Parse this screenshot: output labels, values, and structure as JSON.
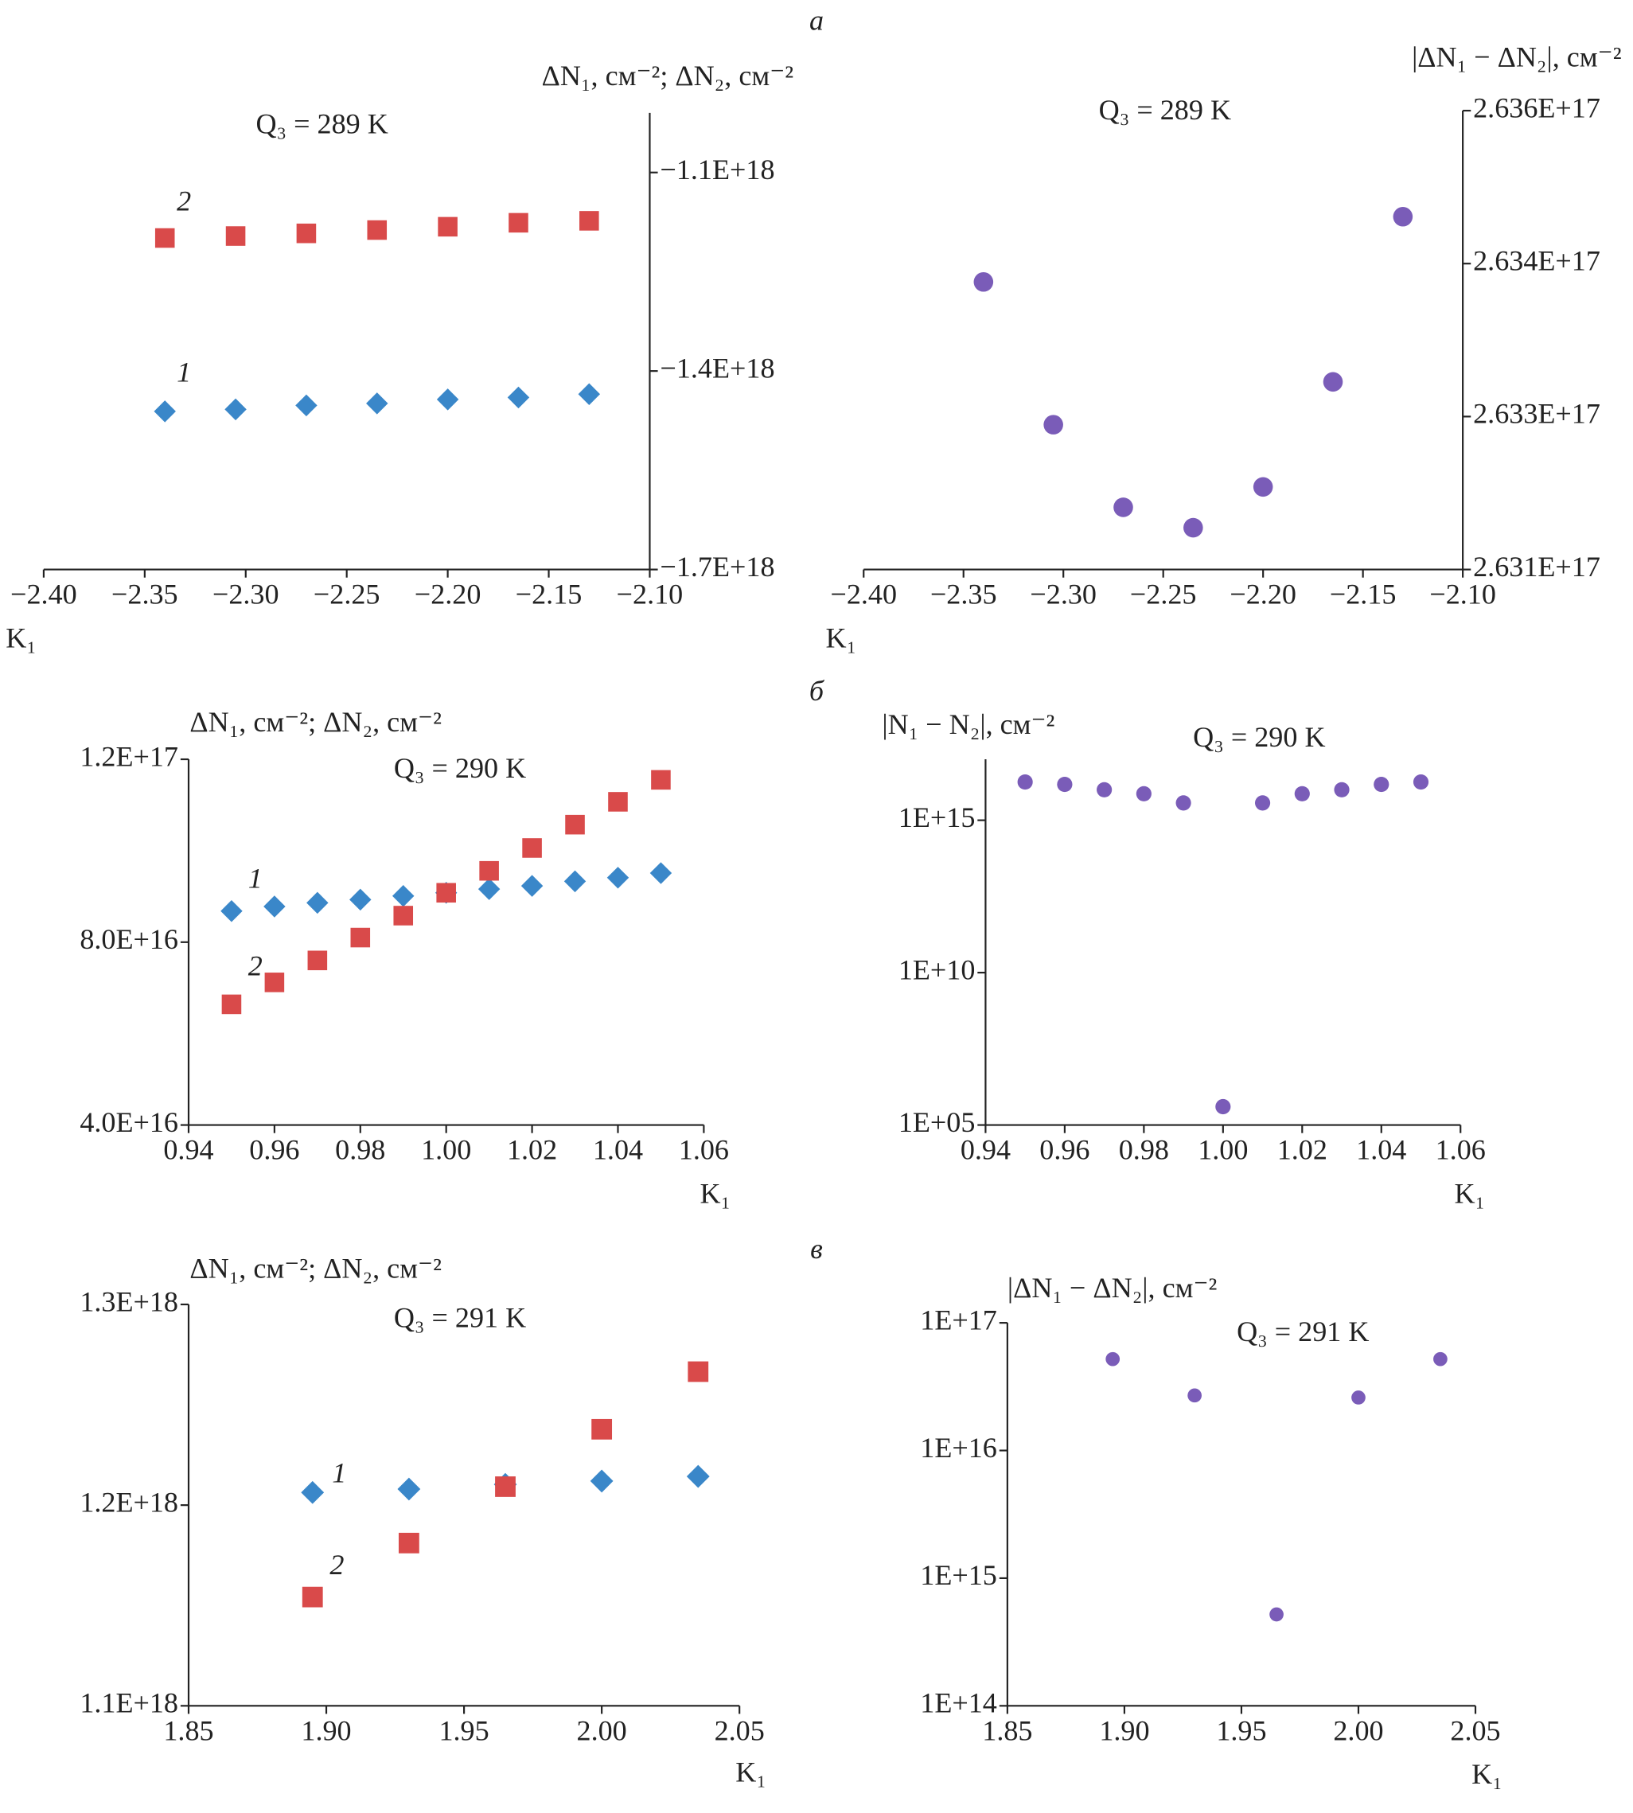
{
  "panel_labels": [
    "а",
    "б",
    "в"
  ],
  "chart_data": [
    {
      "type": "scatter",
      "title": "Q₃ = 289 K",
      "x_label": "K₁",
      "y_label": "ΔN₁, см⁻²; ΔN₂, см⁻²",
      "x": [
        -2.34,
        -2.305,
        -2.27,
        -2.235,
        -2.2,
        -2.165,
        -2.13
      ],
      "series": [
        {
          "name": "1",
          "color": "#3a87c9",
          "marker": "diamond",
          "values": [
            -1.461e+18,
            -1.458e+18,
            -1.452e+18,
            -1.449e+18,
            -1.443e+18,
            -1.44e+18,
            -1.435e+18
          ]
        },
        {
          "name": "2",
          "color": "#d94a4a",
          "marker": "square",
          "values": [
            -1.199e+18,
            -1.196e+18,
            -1.192e+18,
            -1.187e+18,
            -1.182e+18,
            -1.176e+18,
            -1.173e+18
          ]
        }
      ],
      "xlim": [
        -2.4,
        -2.1
      ],
      "xticks": [
        {
          "value": -2.4,
          "label": "−2.40"
        },
        {
          "value": -2.35,
          "label": "−2.35"
        },
        {
          "value": -2.3,
          "label": "−2.30"
        },
        {
          "value": -2.25,
          "label": "−2.25"
        },
        {
          "value": -2.2,
          "label": "−2.20"
        },
        {
          "value": -2.15,
          "label": "−2.15"
        },
        {
          "value": -2.1,
          "label": "−2.10"
        }
      ],
      "ylim": [
        -1.7e+18,
        -1.01e+18
      ],
      "yticks": [
        {
          "value": -1.7e+18,
          "label": "−1.7E+18"
        },
        {
          "value": -1.4e+18,
          "label": "−1.4E+18"
        },
        {
          "value": -1.1e+18,
          "label": "−1.1E+18"
        }
      ],
      "log_y": false
    },
    {
      "type": "scatter",
      "title": "Q₃ = 289 K",
      "x_label": "K₁",
      "y_label": "|ΔN₁ − ΔN₂|, см⁻²",
      "x": [
        -2.34,
        -2.305,
        -2.27,
        -2.235,
        -2.2,
        -2.165,
        -2.13
      ],
      "values": [
        2.63382e+17,
        2.63242e+17,
        2.63161e+17,
        2.63141e+17,
        2.63181e+17,
        2.63284e+17,
        2.63446e+17
      ],
      "color": "#7a5cb8",
      "marker": "circle",
      "xlim": [
        -2.4,
        -2.1
      ],
      "xticks": [
        {
          "value": -2.4,
          "label": "−2.40"
        },
        {
          "value": -2.35,
          "label": "−2.35"
        },
        {
          "value": -2.3,
          "label": "−2.30"
        },
        {
          "value": -2.25,
          "label": "−2.25"
        },
        {
          "value": -2.2,
          "label": "−2.20"
        },
        {
          "value": -2.15,
          "label": "−2.15"
        },
        {
          "value": -2.1,
          "label": "−2.10"
        }
      ],
      "ylim": [
        2.631e+17,
        2.6355e+17
      ],
      "yticks": [
        {
          "value": 2.631e+17,
          "label": "2.631E+17"
        },
        {
          "value": 2.6325e+17,
          "label": "2.633E+17"
        },
        {
          "value": 2.634e+17,
          "label": "2.634E+17"
        },
        {
          "value": 2.6355e+17,
          "label": "2.636E+17"
        }
      ],
      "log_y": false
    },
    {
      "type": "scatter",
      "title": "Q₃ = 290 K",
      "x_label": "K₁",
      "y_label": "ΔN₁, см⁻²; ΔN₂, см⁻²",
      "x": [
        0.95,
        0.96,
        0.97,
        0.98,
        0.99,
        1.0,
        1.01,
        1.02,
        1.03,
        1.04,
        1.05
      ],
      "series": [
        {
          "name": "1",
          "color": "#3a87c9",
          "marker": "diamond",
          "values": [
            8.68e+16,
            8.78e+16,
            8.86e+16,
            8.93e+16,
            9.01e+16,
            9.08e+16,
            9.16e+16,
            9.23e+16,
            9.33e+16,
            9.41e+16,
            9.51e+16
          ]
        },
        {
          "name": "2",
          "color": "#d94a4a",
          "marker": "square",
          "values": [
            6.64e+16,
            7.12e+16,
            7.6e+16,
            8.1e+16,
            8.58e+16,
            9.08e+16,
            9.56e+16,
            1.006e+17,
            1.057e+17,
            1.107e+17,
            1.155e+17
          ]
        }
      ],
      "xlim": [
        0.94,
        1.06
      ],
      "xticks": [
        0.94,
        0.96,
        0.98,
        {
          "value": 1.0,
          "label": "1.00"
        },
        1.02,
        1.04,
        1.06
      ],
      "ylim": [
        4e+16,
        1.2e+17
      ],
      "yticks": [
        {
          "value": 4e+16,
          "label": "4.0E+16"
        },
        {
          "value": 8e+16,
          "label": "8.0E+16"
        },
        {
          "value": 1.2e+17,
          "label": "1.2E+17"
        }
      ],
      "log_y": false
    },
    {
      "type": "scatter",
      "title": "Q₃ = 290 K",
      "x_label": "K₁",
      "y_label": "|N₁ − N₂|, см⁻²",
      "x": [
        0.95,
        0.96,
        0.97,
        0.98,
        0.99,
        1.0,
        1.01,
        1.02,
        1.03,
        1.04,
        1.05
      ],
      "values": [
        1.8e+16,
        1.5e+16,
        1e+16,
        7400000000000000.0,
        3700000000000000.0,
        400000.0,
        3700000000000000.0,
        7400000000000000.0,
        1e+16,
        1.5e+16,
        1.8e+16
      ],
      "color": "#7a5cb8",
      "marker": "circle",
      "xlim": [
        0.94,
        1.06
      ],
      "xticks": [
        0.94,
        0.96,
        0.98,
        {
          "value": 1.0,
          "label": "1.00"
        },
        1.02,
        1.04,
        1.06
      ],
      "ylim": [
        100000.0,
        1e+17
      ],
      "yticks": [
        {
          "value": 100000.0,
          "label": "1E+05"
        },
        {
          "value": 10000000000.0,
          "label": "1E+10"
        },
        {
          "value": 1000000000000000.0,
          "label": "1E+15"
        }
      ],
      "log_y": true
    },
    {
      "type": "scatter",
      "title": "Q₃ = 291 K",
      "x_label": "K₁",
      "y_label": "ΔN₁, см⁻²; ΔN₂, см⁻²",
      "x": [
        1.895,
        1.93,
        1.965,
        2.0,
        2.035
      ],
      "series": [
        {
          "name": "1",
          "color": "#3a87c9",
          "marker": "diamond",
          "values": [
            1.2063e+18,
            1.208e+18,
            1.2103e+18,
            1.212e+18,
            1.2143e+18
          ]
        },
        {
          "name": "2",
          "color": "#d94a4a",
          "marker": "square",
          "values": [
            1.1542e+18,
            1.1811e+18,
            1.2092e+18,
            1.2378e+18,
            1.2665e+18
          ]
        }
      ],
      "xlim": [
        1.85,
        2.05
      ],
      "xticks": [
        1.85,
        {
          "value": 1.9,
          "label": "1.90"
        },
        1.95,
        {
          "value": 2.0,
          "label": "2.00"
        },
        2.05
      ],
      "ylim": [
        1.1e+18,
        1.3e+18
      ],
      "yticks": [
        {
          "value": 1.1e+18,
          "label": "1.1E+18"
        },
        {
          "value": 1.2e+18,
          "label": "1.2E+18"
        },
        {
          "value": 1.3e+18,
          "label": "1.3E+18"
        }
      ],
      "log_y": false
    },
    {
      "type": "scatter",
      "title": "Q₃ = 291 K",
      "x_label": "K₁",
      "y_label": "|ΔN₁ − ΔN₂|, см⁻²",
      "x": [
        1.895,
        1.93,
        1.965,
        2.0,
        2.035
      ],
      "values": [
        5.2e+16,
        2.7e+16,
        520000000000000.0,
        2.6e+16,
        5.2e+16
      ],
      "color": "#7a5cb8",
      "marker": "circle",
      "xlim": [
        1.85,
        2.05
      ],
      "xticks": [
        1.85,
        {
          "value": 1.9,
          "label": "1.90"
        },
        1.95,
        {
          "value": 2.0,
          "label": "2.00"
        },
        2.05
      ],
      "ylim": [
        100000000000000.0,
        1e+17
      ],
      "yticks": [
        {
          "value": 100000000000000.0,
          "label": "1E+14"
        },
        {
          "value": 1000000000000000.0,
          "label": "1E+15"
        },
        {
          "value": 1e+16,
          "label": "1E+16"
        },
        {
          "value": 1e+17,
          "label": "1E+17"
        }
      ],
      "log_y": true
    }
  ]
}
